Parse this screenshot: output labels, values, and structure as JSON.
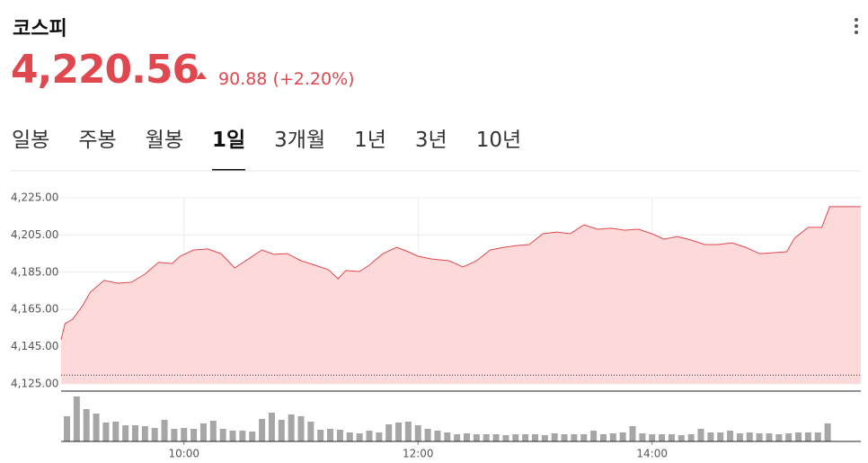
{
  "header": {
    "title": "코스피",
    "price": "4,220.56",
    "change": "90.88",
    "change_pct": "(+2.20%)"
  },
  "tabs": {
    "items": [
      "일봉",
      "주봉",
      "월봉",
      "1일",
      "3개월",
      "1년",
      "3년",
      "10년"
    ],
    "active_index": 3
  },
  "chart_data": {
    "type": "area",
    "color": "#e0484f",
    "fill": "#fdd9da",
    "x": [
      537,
      539,
      543,
      548,
      552,
      559,
      566,
      573,
      580,
      587,
      594,
      598,
      605,
      612,
      619,
      626,
      633,
      640,
      646,
      653,
      660,
      667,
      674,
      679,
      683,
      690,
      695,
      702,
      709,
      715,
      720,
      727,
      736,
      743,
      750,
      757,
      764,
      771,
      777,
      784,
      791,
      798,
      805,
      812,
      819,
      826,
      833,
      840,
      846,
      853,
      860,
      867,
      874,
      881,
      888,
      895,
      902,
      909,
      913,
      920,
      927,
      931,
      947
    ],
    "series": [
      {
        "name": "코스피",
        "color": "#e0484f",
        "values": [
          4148.7,
          4157.4,
          4159.8,
          4167.0,
          4174.3,
          4180.6,
          4179.1,
          4179.6,
          4184.0,
          4190.3,
          4189.7,
          4193.6,
          4197.0,
          4197.5,
          4195.0,
          4187.3,
          4192.1,
          4197.0,
          4194.6,
          4195.0,
          4191.2,
          4188.8,
          4186.4,
          4181.5,
          4185.9,
          4185.4,
          4188.8,
          4195.0,
          4198.4,
          4196.0,
          4193.6,
          4192.1,
          4191.2,
          4187.8,
          4191.2,
          4197.0,
          4198.4,
          4199.4,
          4199.9,
          4205.7,
          4206.6,
          4205.7,
          4210.5,
          4208.1,
          4208.6,
          4207.6,
          4208.1,
          4205.7,
          4202.8,
          4204.2,
          4202.3,
          4199.9,
          4199.9,
          4200.8,
          4198.4,
          4195.0,
          4195.5,
          4196.0,
          4203.3,
          4209.1,
          4209.1,
          4220.2,
          4220.2
        ]
      }
    ],
    "reference_line": 4129.68,
    "xlim": [
      537,
      947
    ],
    "ylim": [
      4125,
      4225
    ],
    "yticks": [
      {
        "value": 4225,
        "label": "4,225.00"
      },
      {
        "value": 4205,
        "label": "4,205.00"
      },
      {
        "value": 4185,
        "label": "4,185.00"
      },
      {
        "value": 4165,
        "label": "4,165.00"
      },
      {
        "value": 4145,
        "label": "4,145.00"
      },
      {
        "value": 4125,
        "label": "4,125.00"
      }
    ],
    "xticks": [
      {
        "value": 600,
        "label": "10:00"
      },
      {
        "value": 720,
        "label": "12:00"
      },
      {
        "value": 840,
        "label": "14:00"
      }
    ],
    "grid": true,
    "volume": {
      "color": "#a6a6a6",
      "ylim": [
        0,
        55
      ],
      "x": [
        540,
        545,
        550,
        555,
        560,
        565,
        570,
        575,
        580,
        585,
        590,
        595,
        600,
        605,
        610,
        615,
        620,
        625,
        630,
        635,
        640,
        645,
        650,
        655,
        660,
        665,
        670,
        675,
        680,
        685,
        690,
        695,
        700,
        705,
        710,
        715,
        720,
        725,
        730,
        735,
        740,
        745,
        750,
        755,
        760,
        765,
        770,
        775,
        780,
        785,
        790,
        795,
        800,
        805,
        810,
        815,
        820,
        825,
        830,
        835,
        840,
        845,
        850,
        855,
        860,
        865,
        870,
        875,
        880,
        885,
        890,
        895,
        900,
        905,
        910,
        915,
        920,
        925,
        930
      ],
      "values": [
        28,
        50,
        36,
        31,
        21,
        22,
        18,
        18,
        17,
        15,
        24,
        14,
        15,
        14,
        20,
        23,
        14,
        12,
        12,
        11,
        25,
        32,
        24,
        30,
        28,
        22,
        13,
        14,
        13,
        10,
        9,
        12,
        10,
        19,
        21,
        22,
        18,
        14,
        12,
        10,
        8,
        9,
        8,
        8,
        8,
        7,
        8,
        8,
        8,
        7,
        9,
        8,
        8,
        8,
        12,
        8,
        9,
        10,
        17,
        9,
        8,
        8,
        8,
        7,
        8,
        14,
        10,
        10,
        12,
        9,
        10,
        9,
        9,
        8,
        9,
        10,
        10,
        10,
        20
      ]
    }
  }
}
